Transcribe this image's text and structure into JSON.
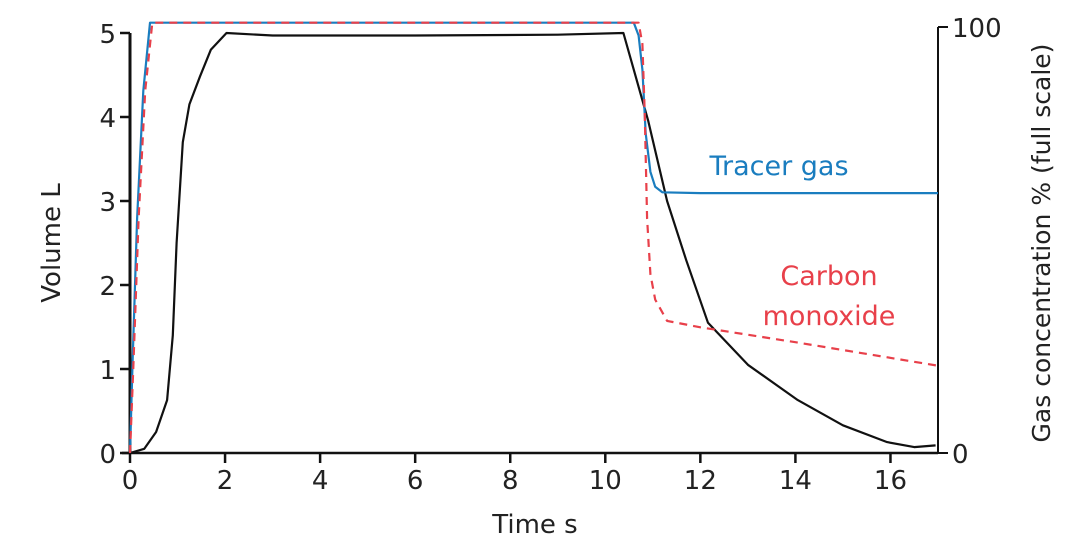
{
  "chart_data": {
    "type": "line",
    "xlabel": "Time s",
    "ylabel": "Volume L",
    "y2label": "Gas concentration % (full scale)",
    "xlim": [
      0,
      17
    ],
    "ylim": [
      0,
      5
    ],
    "y2lim": [
      0,
      100
    ],
    "xticks": [
      0,
      2,
      4,
      6,
      8,
      10,
      12,
      14,
      16
    ],
    "yticks": [
      0,
      1,
      2,
      3,
      4,
      5
    ],
    "y2ticks": [
      0,
      100
    ],
    "grid": false,
    "series": [
      {
        "name": "",
        "axis": "left",
        "color": "#111111",
        "dash": false,
        "points": [
          [
            0,
            0
          ],
          [
            0.3,
            0.05
          ],
          [
            0.55,
            0.25
          ],
          [
            0.78,
            0.63
          ],
          [
            0.9,
            1.4
          ],
          [
            0.98,
            2.5
          ],
          [
            1.11,
            3.7
          ],
          [
            1.25,
            4.15
          ],
          [
            1.47,
            4.48
          ],
          [
            1.7,
            4.8
          ],
          [
            2.03,
            5.0
          ],
          [
            3,
            4.97
          ],
          [
            6,
            4.97
          ],
          [
            9,
            4.98
          ],
          [
            10.38,
            5.0
          ],
          [
            10.9,
            3.96
          ],
          [
            11.3,
            3.0
          ],
          [
            11.7,
            2.3
          ],
          [
            12.16,
            1.55
          ],
          [
            13,
            1.05
          ],
          [
            14.05,
            0.63
          ],
          [
            15,
            0.33
          ],
          [
            15.93,
            0.13
          ],
          [
            16.5,
            0.07
          ],
          [
            16.95,
            0.09
          ]
        ]
      },
      {
        "name": "Tracer gas",
        "axis": "right",
        "color": "#1a7dbf",
        "dash": false,
        "points": [
          [
            0,
            0
          ],
          [
            0.05,
            20
          ],
          [
            0.15,
            55
          ],
          [
            0.28,
            85
          ],
          [
            0.42,
            101
          ],
          [
            10.6,
            101
          ],
          [
            10.7,
            98
          ],
          [
            10.78,
            90
          ],
          [
            10.85,
            75
          ],
          [
            10.95,
            66
          ],
          [
            11.05,
            62.5
          ],
          [
            11.2,
            61.2
          ],
          [
            12,
            61
          ],
          [
            17,
            61
          ]
        ]
      },
      {
        "name": "Carbon monoxide",
        "axis": "right",
        "color": "#e8404a",
        "dash": true,
        "points": [
          [
            0,
            0
          ],
          [
            0.07,
            20
          ],
          [
            0.18,
            55
          ],
          [
            0.32,
            85
          ],
          [
            0.47,
            101
          ],
          [
            10.7,
            101
          ],
          [
            10.78,
            96
          ],
          [
            10.83,
            80
          ],
          [
            10.88,
            55
          ],
          [
            10.95,
            42
          ],
          [
            11.05,
            36
          ],
          [
            11.3,
            31
          ],
          [
            12,
            29.5
          ],
          [
            14,
            26
          ],
          [
            17,
            20.5
          ]
        ]
      }
    ],
    "annotations": [
      {
        "text": "Tracer gas",
        "color": "#1a7dbf"
      },
      {
        "text": "Carbon",
        "color": "#e8404a"
      },
      {
        "text": "monoxide",
        "color": "#e8404a"
      }
    ]
  }
}
